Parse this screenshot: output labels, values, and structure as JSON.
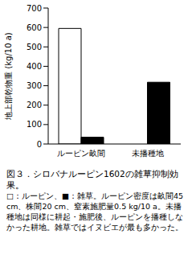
{
  "chart_data": {
    "type": "bar",
    "title": "図３．シロバナルーピン1602の雑草抑制効果。",
    "annotations": [
      "□：ルーピン、■：雑草。ルーピン密度は畝間45 cm、株間20 cm、窒素施肥量0.5 kg/10 a。未播種地は同様に耕起・施肥後、ルーピンを播種しなかった耕地。雑草ではイヌビエが最も多かった。"
    ],
    "y_label": "地上部乾物重 (kg/10 a)",
    "categories": [
      "ルーピン畝間",
      "未播種地"
    ],
    "series": [
      {
        "name": "ルーピン",
        "color": "#ffffff",
        "values": [
          595,
          null
        ]
      },
      {
        "name": "雑草",
        "color": "#000000",
        "values": [
          35,
          318
        ]
      }
    ],
    "ylim": [
      0,
      700
    ],
    "yticks": [
      0,
      100,
      200,
      300,
      400,
      500,
      600,
      700
    ],
    "grid": false
  }
}
